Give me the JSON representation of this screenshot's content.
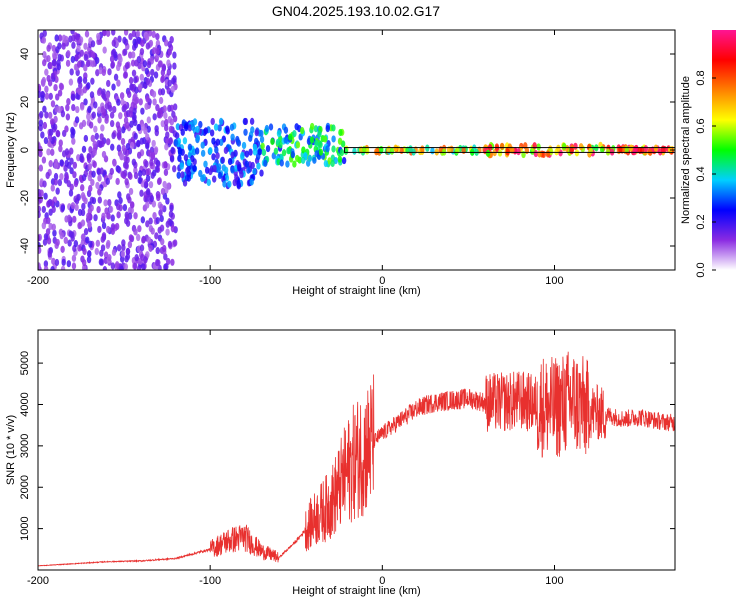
{
  "title": "GN04.2025.193.10.02.G17",
  "chart_data": [
    {
      "type": "heatmap",
      "xlabel": "Height of straight line (km)",
      "ylabel": "Frequency (Hz)",
      "xlim": [
        -200,
        170
      ],
      "ylim": [
        -50,
        50
      ],
      "x_ticks": [
        -200,
        -100,
        0,
        100
      ],
      "y_ticks": [
        -40,
        -20,
        0,
        20,
        40
      ],
      "colorbar": {
        "label": "Normalized spectral amplitude",
        "range": [
          0,
          1
        ],
        "ticks": [
          0.0,
          0.2,
          0.4,
          0.6,
          0.8
        ],
        "colors": [
          "#ffffff",
          "#8a2be2",
          "#0000ff",
          "#00d0ff",
          "#00ff00",
          "#ffff00",
          "#ff8000",
          "#ff0000",
          "#ff1493"
        ]
      },
      "regions": [
        {
          "x_range": [
            -200,
            -120
          ],
          "freq_range": [
            -50,
            50
          ],
          "amplitude": 0.15
        },
        {
          "x_range": [
            -120,
            -70
          ],
          "freq_range": [
            -15,
            12
          ],
          "amplitude": 0.3
        },
        {
          "x_range": [
            -70,
            -22
          ],
          "freq_range": [
            -6,
            10
          ],
          "amplitude": 0.45
        },
        {
          "x_range": [
            -22,
            60
          ],
          "freq_range": [
            -1,
            1
          ],
          "amplitude": 0.65
        },
        {
          "x_range": [
            60,
            130
          ],
          "freq_range": [
            -2,
            2
          ],
          "amplitude": 0.85
        },
        {
          "x_range": [
            130,
            170
          ],
          "freq_range": [
            -1,
            1
          ],
          "amplitude": 0.9
        }
      ]
    },
    {
      "type": "line",
      "xlabel": "Height of straight line (km)",
      "ylabel": "SNR (10 * v/v)",
      "xlim": [
        -200,
        170
      ],
      "ylim": [
        0,
        5800
      ],
      "x_ticks": [
        -200,
        -100,
        0,
        100
      ],
      "y_ticks": [
        1000,
        2000,
        3000,
        4000,
        5000
      ],
      "series": [
        {
          "color": "#e8302e",
          "x": [
            -200,
            -180,
            -160,
            -140,
            -120,
            -100,
            -90,
            -80,
            -70,
            -60,
            -50,
            -40,
            -30,
            -25,
            -20,
            -15,
            -10,
            -5,
            0,
            10,
            20,
            30,
            40,
            50,
            60,
            70,
            80,
            90,
            100,
            110,
            120,
            130,
            140,
            150,
            160,
            170
          ],
          "y": [
            100,
            150,
            200,
            220,
            280,
            500,
            700,
            800,
            450,
            300,
            700,
            1200,
            1600,
            2000,
            2400,
            2700,
            2900,
            3100,
            3300,
            3600,
            3900,
            4050,
            4100,
            4150,
            4050,
            4050,
            4100,
            4000,
            3900,
            4100,
            3850,
            3750,
            3650,
            3700,
            3600,
            3550
          ]
        }
      ]
    }
  ]
}
